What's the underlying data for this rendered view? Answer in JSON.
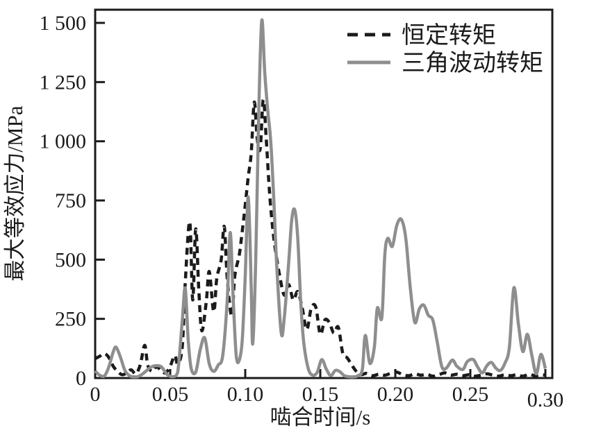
{
  "figure": {
    "background": "#ffffff",
    "axis_color": "#1b1b1b"
  },
  "chart_data": {
    "type": "line",
    "title": "",
    "xlabel": "啮合时间/s",
    "ylabel": "最大等效应力/MPa",
    "xlim": [
      0,
      0.3
    ],
    "ylim": [
      0,
      1500
    ],
    "grid": false,
    "legend_position": "top-right-inside",
    "x_ticks": {
      "values": [
        0,
        0.05,
        0.1,
        0.15,
        0.2,
        0.25,
        0.3
      ],
      "labels": [
        "0",
        "0.05",
        "0.10",
        "0.15",
        "0.20",
        "0.25",
        "0.30"
      ]
    },
    "y_ticks": {
      "values": [
        0,
        250,
        500,
        750,
        1000,
        1250,
        1500
      ],
      "labels": [
        "0",
        "250",
        "500",
        "750",
        "1 000",
        "1 250",
        "1 500"
      ]
    },
    "series": [
      {
        "name": "恒定转矩",
        "line_style": "dashed",
        "color": "#1b1b1b",
        "points": [
          [
            0,
            82
          ],
          [
            0.003,
            92
          ],
          [
            0.006,
            103
          ],
          [
            0.009,
            88
          ],
          [
            0.012,
            50
          ],
          [
            0.015,
            28
          ],
          [
            0.018,
            14
          ],
          [
            0.021,
            22
          ],
          [
            0.024,
            35
          ],
          [
            0.027,
            18
          ],
          [
            0.03,
            55
          ],
          [
            0.033,
            138
          ],
          [
            0.035,
            55
          ],
          [
            0.038,
            28
          ],
          [
            0.041,
            48
          ],
          [
            0.044,
            30
          ],
          [
            0.047,
            22
          ],
          [
            0.05,
            50
          ],
          [
            0.053,
            95
          ],
          [
            0.055,
            60
          ],
          [
            0.058,
            130
          ],
          [
            0.06,
            400
          ],
          [
            0.063,
            660
          ],
          [
            0.065,
            330
          ],
          [
            0.067,
            630
          ],
          [
            0.069,
            380
          ],
          [
            0.071,
            200
          ],
          [
            0.074,
            320
          ],
          [
            0.076,
            450
          ],
          [
            0.079,
            280
          ],
          [
            0.081,
            420
          ],
          [
            0.084,
            500
          ],
          [
            0.086,
            640
          ],
          [
            0.088,
            420
          ],
          [
            0.091,
            260
          ],
          [
            0.093,
            430
          ],
          [
            0.096,
            520
          ],
          [
            0.098,
            620
          ],
          [
            0.1,
            730
          ],
          [
            0.102,
            850
          ],
          [
            0.104,
            950
          ],
          [
            0.106,
            1165
          ],
          [
            0.108,
            1010
          ],
          [
            0.11,
            970
          ],
          [
            0.112,
            1175
          ],
          [
            0.114,
            1010
          ],
          [
            0.116,
            800
          ],
          [
            0.118,
            650
          ],
          [
            0.12,
            545
          ],
          [
            0.123,
            430
          ],
          [
            0.126,
            350
          ],
          [
            0.129,
            395
          ],
          [
            0.132,
            330
          ],
          [
            0.135,
            365
          ],
          [
            0.138,
            295
          ],
          [
            0.141,
            205
          ],
          [
            0.144,
            295
          ],
          [
            0.147,
            300
          ],
          [
            0.15,
            185
          ],
          [
            0.153,
            245
          ],
          [
            0.156,
            235
          ],
          [
            0.159,
            190
          ],
          [
            0.162,
            215
          ],
          [
            0.165,
            105
          ],
          [
            0.168,
            85
          ],
          [
            0.171,
            55
          ],
          [
            0.174,
            28
          ],
          [
            0.177,
            14
          ],
          [
            0.181,
            20
          ],
          [
            0.185,
            10
          ],
          [
            0.189,
            16
          ],
          [
            0.193,
            12
          ],
          [
            0.197,
            20
          ],
          [
            0.201,
            25
          ],
          [
            0.205,
            14
          ],
          [
            0.209,
            10
          ],
          [
            0.213,
            18
          ],
          [
            0.217,
            12
          ],
          [
            0.221,
            16
          ],
          [
            0.225,
            8
          ],
          [
            0.229,
            14
          ],
          [
            0.233,
            22
          ],
          [
            0.237,
            12
          ],
          [
            0.241,
            16
          ],
          [
            0.245,
            10
          ],
          [
            0.249,
            14
          ],
          [
            0.253,
            8
          ],
          [
            0.257,
            12
          ],
          [
            0.261,
            18
          ],
          [
            0.265,
            12
          ],
          [
            0.269,
            8
          ],
          [
            0.273,
            14
          ],
          [
            0.277,
            10
          ],
          [
            0.281,
            14
          ],
          [
            0.285,
            8
          ],
          [
            0.289,
            16
          ],
          [
            0.293,
            10
          ],
          [
            0.297,
            14
          ],
          [
            0.3,
            12
          ]
        ]
      },
      {
        "name": "三角波动转矩",
        "line_style": "solid",
        "color": "#8e8e8e",
        "points": [
          [
            0,
            30
          ],
          [
            0.003,
            12
          ],
          [
            0.006,
            8
          ],
          [
            0.009,
            45
          ],
          [
            0.012,
            110
          ],
          [
            0.014,
            130
          ],
          [
            0.017,
            85
          ],
          [
            0.02,
            30
          ],
          [
            0.024,
            6
          ],
          [
            0.028,
            5
          ],
          [
            0.031,
            15
          ],
          [
            0.034,
            30
          ],
          [
            0.037,
            45
          ],
          [
            0.04,
            52
          ],
          [
            0.044,
            48
          ],
          [
            0.048,
            15
          ],
          [
            0.052,
            6
          ],
          [
            0.055,
            25
          ],
          [
            0.058,
            240
          ],
          [
            0.06,
            380
          ],
          [
            0.062,
            160
          ],
          [
            0.064,
            40
          ],
          [
            0.067,
            25
          ],
          [
            0.07,
            120
          ],
          [
            0.073,
            170
          ],
          [
            0.076,
            60
          ],
          [
            0.079,
            28
          ],
          [
            0.082,
            55
          ],
          [
            0.085,
            95
          ],
          [
            0.088,
            330
          ],
          [
            0.09,
            615
          ],
          [
            0.092,
            330
          ],
          [
            0.094,
            95
          ],
          [
            0.096,
            75
          ],
          [
            0.098,
            160
          ],
          [
            0.1,
            430
          ],
          [
            0.102,
            765
          ],
          [
            0.104,
            380
          ],
          [
            0.105,
            145
          ],
          [
            0.107,
            500
          ],
          [
            0.109,
            1120
          ],
          [
            0.111,
            1510
          ],
          [
            0.113,
            1290
          ],
          [
            0.115,
            1130
          ],
          [
            0.117,
            1000
          ],
          [
            0.119,
            760
          ],
          [
            0.121,
            470
          ],
          [
            0.124,
            190
          ],
          [
            0.126,
            255
          ],
          [
            0.129,
            490
          ],
          [
            0.131,
            670
          ],
          [
            0.133,
            710
          ],
          [
            0.135,
            590
          ],
          [
            0.137,
            320
          ],
          [
            0.139,
            150
          ],
          [
            0.142,
            40
          ],
          [
            0.145,
            12
          ],
          [
            0.148,
            25
          ],
          [
            0.151,
            78
          ],
          [
            0.154,
            38
          ],
          [
            0.157,
            10
          ],
          [
            0.16,
            32
          ],
          [
            0.163,
            27
          ],
          [
            0.166,
            10
          ],
          [
            0.169,
            6
          ],
          [
            0.172,
            5
          ],
          [
            0.175,
            10
          ],
          [
            0.178,
            35
          ],
          [
            0.18,
            180
          ],
          [
            0.183,
            62
          ],
          [
            0.186,
            130
          ],
          [
            0.188,
            295
          ],
          [
            0.191,
            255
          ],
          [
            0.193,
            520
          ],
          [
            0.195,
            590
          ],
          [
            0.198,
            556
          ],
          [
            0.201,
            645
          ],
          [
            0.204,
            670
          ],
          [
            0.207,
            590
          ],
          [
            0.21,
            380
          ],
          [
            0.213,
            235
          ],
          [
            0.216,
            292
          ],
          [
            0.219,
            308
          ],
          [
            0.222,
            265
          ],
          [
            0.225,
            245
          ],
          [
            0.228,
            150
          ],
          [
            0.231,
            48
          ],
          [
            0.234,
            42
          ],
          [
            0.238,
            76
          ],
          [
            0.241,
            50
          ],
          [
            0.245,
            36
          ],
          [
            0.248,
            70
          ],
          [
            0.252,
            78
          ],
          [
            0.255,
            45
          ],
          [
            0.258,
            22
          ],
          [
            0.261,
            52
          ],
          [
            0.264,
            66
          ],
          [
            0.267,
            42
          ],
          [
            0.27,
            32
          ],
          [
            0.273,
            62
          ],
          [
            0.276,
            130
          ],
          [
            0.279,
            381
          ],
          [
            0.282,
            230
          ],
          [
            0.285,
            112
          ],
          [
            0.288,
            185
          ],
          [
            0.291,
            95
          ],
          [
            0.294,
            18
          ],
          [
            0.297,
            100
          ],
          [
            0.3,
            40
          ]
        ]
      }
    ]
  }
}
